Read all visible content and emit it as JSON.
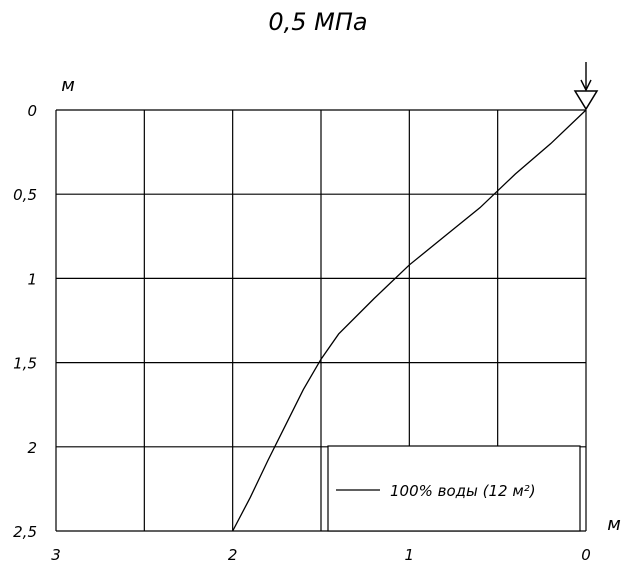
{
  "chart_data": {
    "type": "line",
    "title": "0,5 МПа",
    "xlabel": "м",
    "ylabel": "м",
    "x_axis_direction": "reversed",
    "y_axis_direction": "reversed",
    "xlim": [
      3,
      0
    ],
    "ylim": [
      0,
      2.5
    ],
    "x_ticks": [
      3,
      2.5,
      2,
      1.5,
      1,
      0.5,
      0
    ],
    "x_tick_labels": [
      "3",
      "2",
      "1",
      "0"
    ],
    "x_tick_label_values": [
      3,
      2,
      1,
      0
    ],
    "y_ticks": [
      0,
      0.5,
      1,
      1.5,
      2,
      2.5
    ],
    "y_tick_labels": [
      "0",
      "0,5",
      "1",
      "1,5",
      "2",
      "2,5"
    ],
    "grid": true,
    "legend_position": "bottom-right",
    "source_marker": "downward arrow with triangle at origin",
    "series": [
      {
        "name": "100% воды (12 м²)",
        "color": "#000000",
        "x": [
          0,
          0.2,
          0.4,
          0.6,
          0.8,
          1.0,
          1.2,
          1.4,
          1.5,
          1.6,
          1.7,
          1.8,
          1.9,
          2.0
        ],
        "y": [
          0,
          0.2,
          0.38,
          0.58,
          0.75,
          0.92,
          1.12,
          1.33,
          1.48,
          1.66,
          1.87,
          2.08,
          2.3,
          2.5
        ]
      }
    ]
  }
}
